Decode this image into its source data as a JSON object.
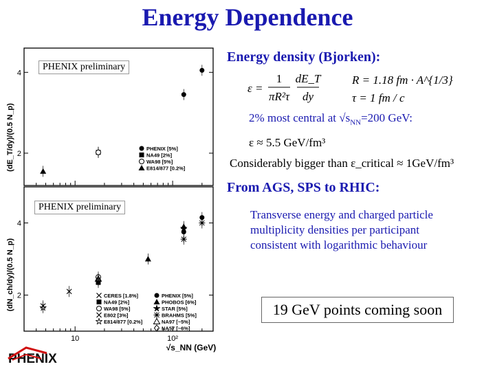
{
  "title": "Energy Dependence",
  "preliminary_label_top": "PHENIX preliminary",
  "preliminary_label_bottom": "PHENIX preliminary",
  "section1_heading": "Energy density (Bjorken):",
  "centrality_line": "2% most central at √s_{NN}=200 GeV:",
  "centrality_prefix": "2% most central at √s",
  "centrality_sub": "NN",
  "centrality_suffix": "=200 GeV:",
  "epsilon_value_line": "ε ≈ 5.5 GeV/fm³",
  "comparison_line": "Considerably bigger than ε_critical ≈ 1GeV/fm³",
  "section2_heading": "From AGS, SPS to RHIC:",
  "body_lines": [
    "Transverse energy and charged particle",
    "multiplicity densities per participant",
    "consistent with logarithmic behaviour"
  ],
  "callout": "19 GeV points coming soon",
  "logo_text": "PHENIX",
  "formulas": {
    "bjorken_lhs": "ε =",
    "bjorken_num1": "1",
    "bjorken_den1": "πR²τ",
    "bjorken_num2": "dE_T",
    "bjorken_den2": "dy",
    "radius": "R = 1.18 fm · A^{1/3}",
    "tau": "τ = 1 fm / c"
  },
  "chart_data": [
    {
      "type": "scatter",
      "title": "",
      "xlabel": "",
      "ylabel": "(dE_T/dy)/(0.5 N_p)",
      "x_scale": "log",
      "ylim": [
        1.2,
        4.6
      ],
      "y_ticks": [
        "2",
        "4"
      ],
      "series": [
        {
          "name": "PHENIX [5%]",
          "marker": "filled-circle",
          "points": [
            [
              130,
              3.45
            ],
            [
              200,
              4.05
            ]
          ]
        },
        {
          "name": "NA49 [2%]",
          "marker": "filled-square",
          "points": [
            [
              17.3,
              2.02
            ]
          ]
        },
        {
          "name": "WA98 [5%]",
          "marker": "open-circle",
          "points": [
            [
              17.3,
              2.02
            ]
          ]
        },
        {
          "name": "E814/877 [0.2%]",
          "marker": "filled-triangle",
          "points": [
            [
              4.7,
              1.55
            ]
          ]
        }
      ]
    },
    {
      "type": "scatter",
      "title": "",
      "xlabel": "√s_NN (GeV)",
      "ylabel": "(dN_ch/dy)/(0.5 N_p)",
      "x_scale": "log",
      "x_ticks": [
        "10",
        "10²"
      ],
      "ylim": [
        1.0,
        5.0
      ],
      "y_ticks": [
        "2",
        "4"
      ],
      "series": [
        {
          "name": "CERES [1.8%]",
          "marker": "cross",
          "points": [
            [
              8.7,
              2.1
            ]
          ]
        },
        {
          "name": "NA49 [2%]",
          "marker": "filled-square",
          "points": [
            [
              17.3,
              2.35
            ]
          ]
        },
        {
          "name": "WA98 [5%]",
          "marker": "open-circle",
          "points": [
            [
              17.3,
              2.5
            ]
          ]
        },
        {
          "name": "E802 [3%]",
          "marker": "open-cross",
          "points": [
            [
              4.7,
              1.7
            ]
          ]
        },
        {
          "name": "E814/877 [0.2%]",
          "marker": "star-open",
          "points": [
            [
              4.7,
              1.65
            ]
          ]
        },
        {
          "name": "PHENIX [5%]",
          "marker": "filled-circle",
          "points": [
            [
              130,
              3.75
            ],
            [
              200,
              4.15
            ]
          ]
        },
        {
          "name": "PHOBOS [6%]",
          "marker": "filled-triangle",
          "points": [
            [
              56,
              3.0
            ],
            [
              130,
              3.9
            ]
          ]
        },
        {
          "name": "STAR [5%]",
          "marker": "filled-star",
          "points": [
            [
              130,
              3.85
            ]
          ]
        },
        {
          "name": "BRAHMS [5%]",
          "marker": "asterisk",
          "points": [
            [
              130,
              3.55
            ],
            [
              200,
              4.0
            ]
          ]
        },
        {
          "name": "NA97 [~5%]",
          "marker": "open-triangle",
          "points": [
            [
              17.3,
              2.45
            ]
          ]
        },
        {
          "name": "NA57 [~6%]",
          "marker": "open-diamond",
          "points": [
            [
              17.3,
              2.4
            ]
          ]
        }
      ]
    }
  ]
}
